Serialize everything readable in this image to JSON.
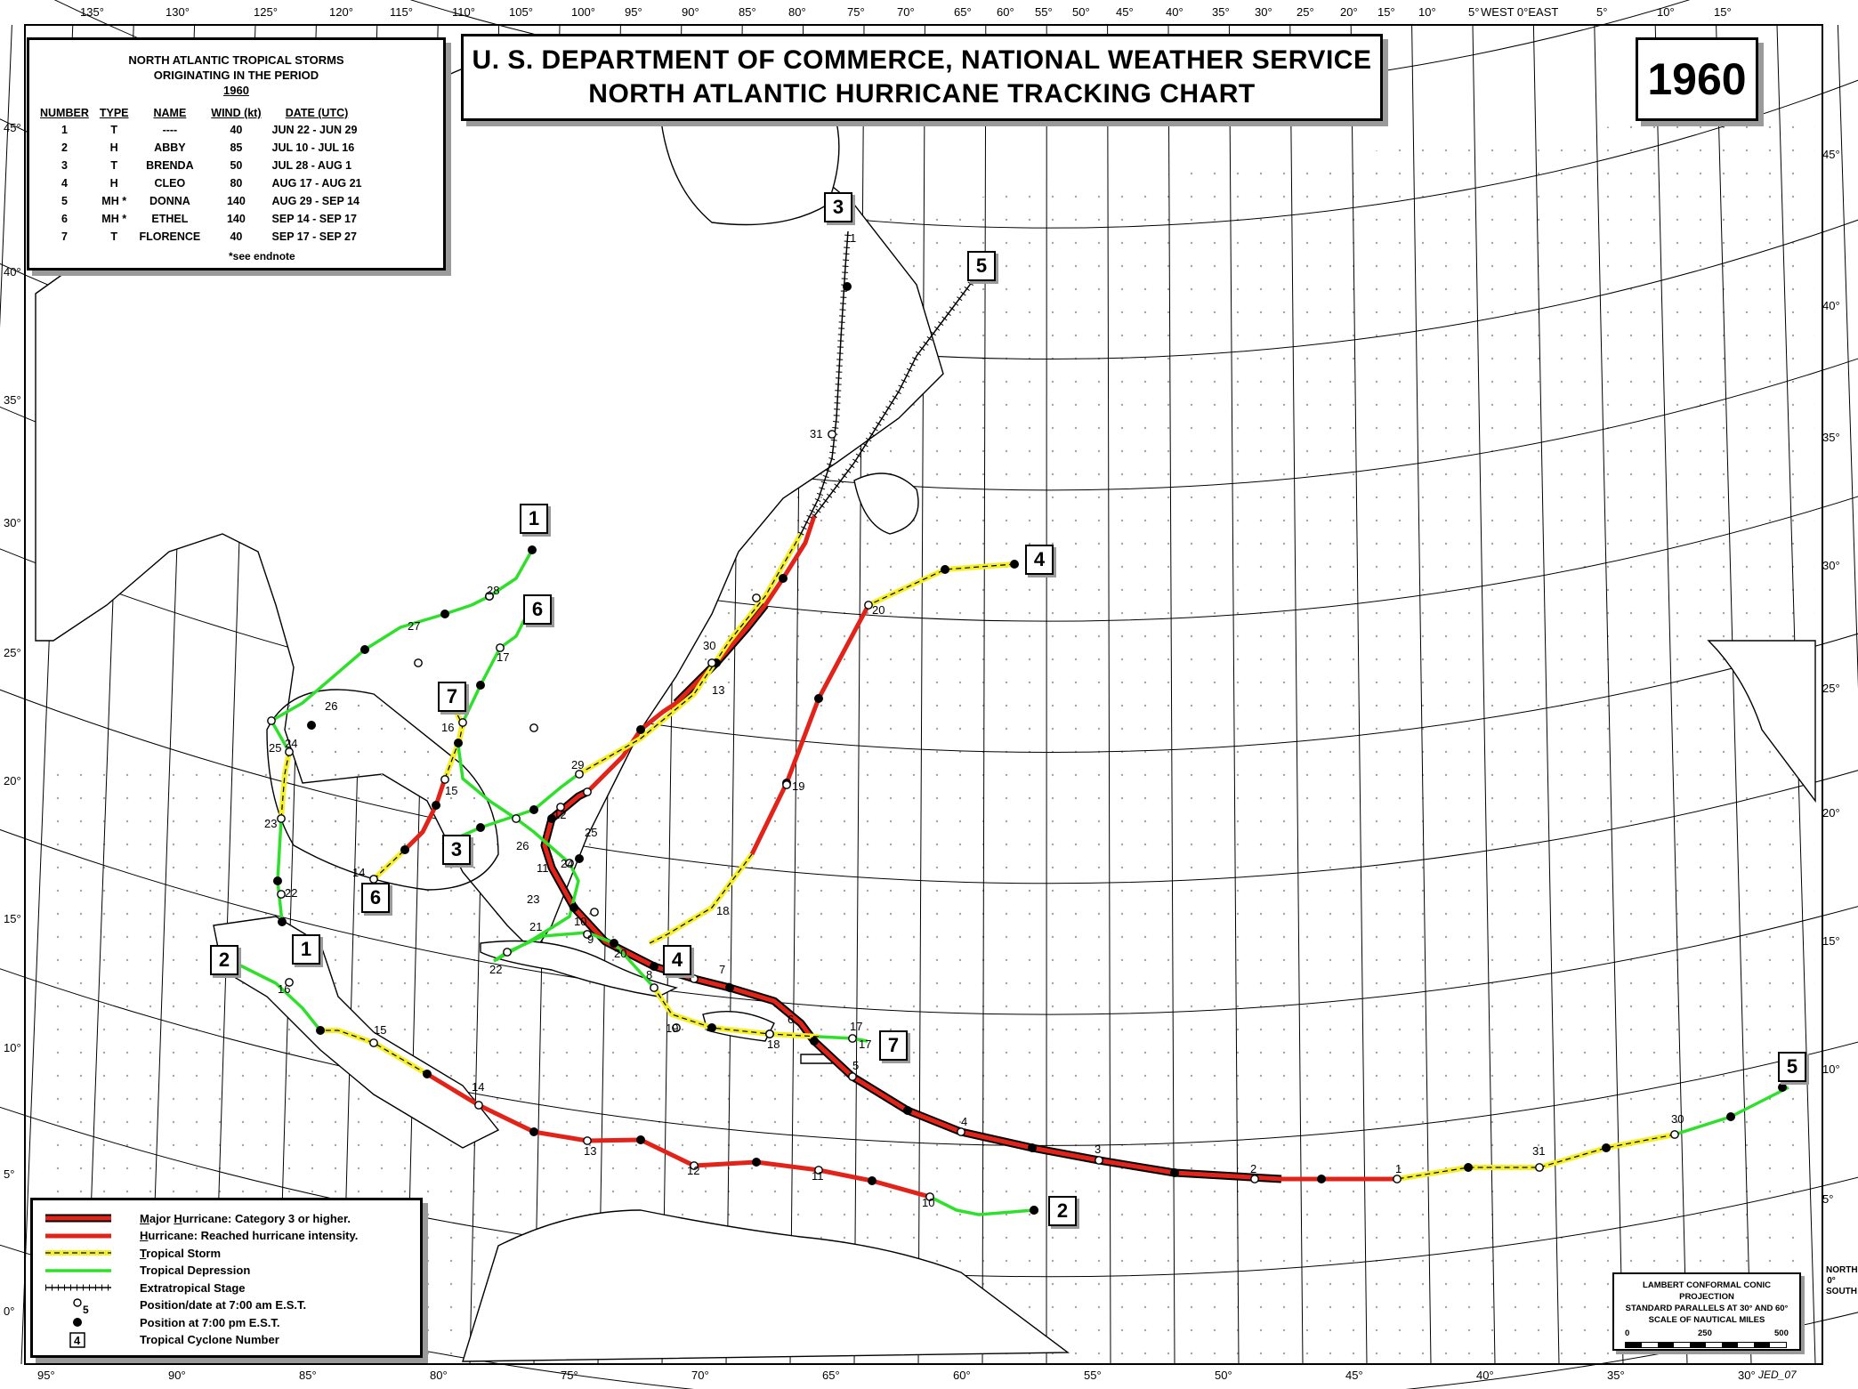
{
  "title_lines": [
    "U. S. DEPARTMENT OF COMMERCE, NATIONAL WEATHER SERVICE",
    "NORTH ATLANTIC HURRICANE TRACKING CHART"
  ],
  "year": "1960",
  "storms_table": {
    "header_lines": [
      "NORTH ATLANTIC TROPICAL STORMS",
      "ORIGINATING IN THE PERIOD"
    ],
    "year": "1960",
    "columns": [
      "NUMBER",
      "TYPE",
      "NAME",
      "WIND (kt)",
      "DATE (UTC)"
    ],
    "rows": [
      [
        "1",
        "T",
        "----",
        "40",
        "JUN 22 - JUN 29"
      ],
      [
        "2",
        "H",
        "ABBY",
        "85",
        "JUL 10 - JUL 16"
      ],
      [
        "3",
        "T",
        "BRENDA",
        "50",
        "JUL 28 - AUG  1"
      ],
      [
        "4",
        "H",
        "CLEO",
        "80",
        "AUG 17 - AUG 21"
      ],
      [
        "5",
        "MH *",
        "DONNA",
        "140",
        "AUG 29 - SEP 14"
      ],
      [
        "6",
        "MH *",
        "ETHEL",
        "140",
        "SEP 14 - SEP 17"
      ],
      [
        "7",
        "T",
        "FLORENCE",
        "40",
        "SEP 17 - SEP 27"
      ]
    ],
    "note": "*see endnote"
  },
  "legend": [
    {
      "symbol": "major",
      "prefix": "Major",
      "mid": " ",
      "prefix2": "Hurricane",
      "rest": ": Category 3 or higher.",
      "color": "#e2231a"
    },
    {
      "symbol": "hurricane",
      "prefix": "Hurricane",
      "rest": ": Reached hurricane intensity.",
      "color": "#e2231a"
    },
    {
      "symbol": "tropical-storm",
      "prefix": "Tropical Storm",
      "rest": "",
      "color": "#f5ef2a"
    },
    {
      "symbol": "depression",
      "prefix": "",
      "rest": "Tropical Depression",
      "color": "#2ee02a"
    },
    {
      "symbol": "extratropical",
      "prefix": "",
      "rest": "Extratropical Stage",
      "color": "#000000"
    },
    {
      "symbol": "am",
      "prefix": "",
      "rest": "Position/date at 7:00 am E.S.T.",
      "sample": "5"
    },
    {
      "symbol": "pm",
      "prefix": "",
      "rest": "Position at 7:00 pm E.S.T."
    },
    {
      "symbol": "number",
      "prefix": "",
      "rest": "Tropical Cyclone Number",
      "sample": "4"
    }
  ],
  "projection": {
    "lines": [
      "LAMBERT CONFORMAL CONIC PROJECTION",
      "STANDARD PARALLELS AT 30° AND 60°",
      "SCALE OF NAUTICAL MILES"
    ],
    "scale": [
      "0",
      "250",
      "500"
    ]
  },
  "top_lon_labels": [
    "135°",
    "130°",
    "125°",
    "120°",
    "115°",
    "110°",
    "105°",
    "100°",
    "95°",
    "90°",
    "85°",
    "80°",
    "75°",
    "70°",
    "65°",
    "60°",
    "55°",
    "50°",
    "45°",
    "40°",
    "35°",
    "30°",
    "25°",
    "20°",
    "15°",
    "10°",
    "5°",
    "WEST 0°EAST",
    "5°",
    "10°",
    "15°"
  ],
  "bottom_lon_labels": [
    "95°",
    "90°",
    "85°",
    "80°",
    "75°",
    "70°",
    "65°",
    "60°",
    "55°",
    "50°",
    "45°",
    "40°",
    "35°",
    "30°"
  ],
  "left_lat_labels": [
    "45°",
    "40°",
    "35°",
    "30°",
    "25°",
    "20°",
    "15°",
    "10°",
    "5°",
    "0°"
  ],
  "right_lat_labels": [
    "45°",
    "40°",
    "35°",
    "30°",
    "25°",
    "20°",
    "15°",
    "10°",
    "5°"
  ],
  "north_south": "NORTH 0° SOUTH",
  "credit": "JED_07",
  "colors": {
    "major": "#e2231a",
    "hurricane": "#e2231a",
    "tropical_storm": "#f5ef2a",
    "depression": "#2ee02a",
    "extratropical": "#000000"
  },
  "storms": [
    {
      "number": "1",
      "name": "----"
    },
    {
      "number": "2",
      "name": "ABBY"
    },
    {
      "number": "3",
      "name": "BRENDA"
    },
    {
      "number": "4",
      "name": "CLEO"
    },
    {
      "number": "5",
      "name": "DONNA"
    },
    {
      "number": "6",
      "name": "ETHEL"
    },
    {
      "number": "7",
      "name": "FLORENCE"
    }
  ],
  "date_labels": {
    "storm1": [
      "22",
      "23",
      "24",
      "25",
      "26",
      "27",
      "28"
    ],
    "storm2": [
      "10",
      "11",
      "12",
      "13",
      "14",
      "15",
      "16"
    ],
    "storm3": [
      "29",
      "30",
      "31",
      "1"
    ],
    "storm4": [
      "17",
      "18",
      "19",
      "20"
    ],
    "storm5": [
      "30",
      "31",
      "1",
      "2",
      "3",
      "4",
      "5",
      "6",
      "7",
      "8",
      "9",
      "10",
      "11",
      "12",
      "13"
    ],
    "storm6": [
      "14",
      "15",
      "16",
      "17"
    ],
    "storm7": [
      "17",
      "18",
      "19",
      "20",
      "21",
      "22",
      "23",
      "24",
      "25",
      "26"
    ]
  }
}
